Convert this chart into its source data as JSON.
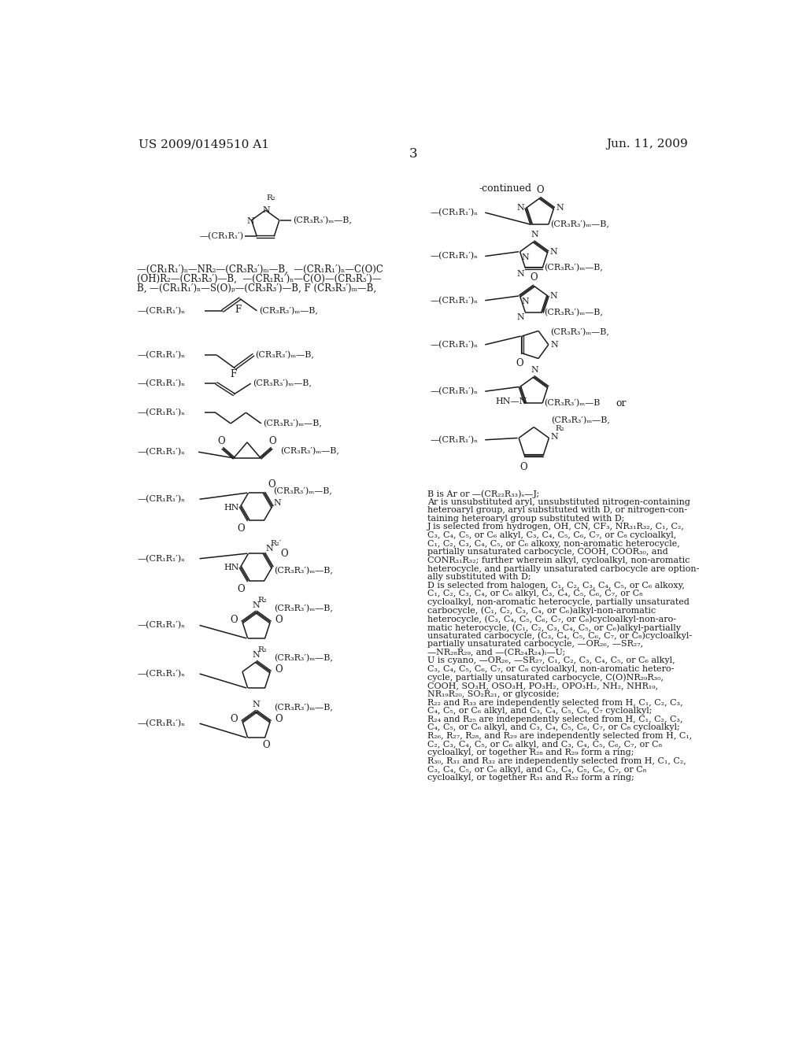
{
  "page_header_left": "US 2009/0149510 A1",
  "page_header_right": "Jun. 11, 2009",
  "page_number": "3",
  "background_color": "#ffffff",
  "text_color": "#1a1a1a",
  "continued_label": "-continued",
  "definitions_text": [
    "B is Ar or —(CR₂₂R₃₃)ₛ—J;",
    "Ar is unsubstituted aryl, unsubstituted nitrogen-containing",
    "heteroaryl group, aryl substituted with D, or nitrogen-con-",
    "taining heteroaryl group substituted with D;",
    "J is selected from hydrogen, OH, CN, CF₃, NR₃₁R₃₂, C₁, C₂,",
    "C₃, C₄, C₅, or C₆ alkyl, C₃, C₄, C₅, C₆, C₇, or C₈ cycloalkyl,",
    "C₁, C₂, C₃, C₄, C₅, or C₆ alkoxy, non-aromatic heterocycle,",
    "partially unsaturated carbocycle, COOH, COOR₃₀, and",
    "CONR₃₁R₃₂; further wherein alkyl, cycloalkyl, non-aromatic",
    "heterocycle, and partially unsaturated carbocycle are option-",
    "ally substituted with D;",
    "D is selected from halogen, C₁, C₂, C₃, C₄, C₅, or C₆ alkoxy,",
    "C₁, C₂, C₃, C₄, or C₆ alkyl, C₃, C₄, C₅, C₆, C₇, or C₈",
    "cycloalkyl, non-aromatic heterocycle, partially unsaturated",
    "carbocycle, (C₁, C₂, C₃, C₄, or C₆)alkyl-non-aromatic",
    "heterocycle, (C₃, C₄, C₅, C₆, C₇, or C₈)cycloalkyl-non-aro-",
    "matic heterocycle, (C₁, C₂, C₃, C₄, C₅, or C₆)alkyl-partially",
    "unsaturated carbocycle, (C₃, C₄, C₅, C₆, C₇, or C₈)cycloalkyl-",
    "partially unsaturated carbocycle, —OR₂₆, —SR₂₇,",
    "—NR₂₈R₂₉, and —(CR₂₄R₂₄)ₗ—U;",
    "U is cyano, —OR₂₆, —SR₂₇, C₁, C₂, C₃, C₄, C₅, or C₆ alkyl,",
    "C₃, C₄, C₅, C₆, C₇, or C₈ cycloalkyl, non-aromatic hetero-",
    "cycle, partially unsaturated carbocycle, C(O)NR₂₉R₃₀,",
    "COOH, SO₃H, OSO₃H, PO₃H₂, OPO₃H₂, NH₂, NHR₁₉,",
    "NR₁₉R₂₀, SO₂R₂₁, or glycoside;",
    "R₂₂ and R₃₃ are independently selected from H, C₁, C₂, C₃,",
    "C₄, C₅, or C₆ alkyl, and C₃, C₄, C₅, C₆, C₇ cycloalkyl;",
    "R₂₄ and R₂₅ are independently selected from H, C₁, C₂, C₃,",
    "C₄, C₅, or C₆ alkyl, and C₃, C₄, C₅, C₆, C₇, or C₈ cycloalkyl;",
    "R₂₆, R₂₇, R₂₈, and R₂₉ are independently selected from H, C₁,",
    "C₂, C₃, C₄, C₅, or C₆ alkyl, and C₃, C₄, C₅, C₆, C₇, or C₈",
    "cycloalkyl, or together R₂₈ and R₂₉ form a ring;",
    "R₃₀, R₃₁ and R₃₂ are independently selected from H, C₁, C₂,",
    "C₃, C₄, C₅, or C₆ alkyl, and C₃, C₄, C₅, C₆, C₇, or C₈",
    "cycloalkyl, or together R₃₁ and R₃₂ form a ring;"
  ]
}
